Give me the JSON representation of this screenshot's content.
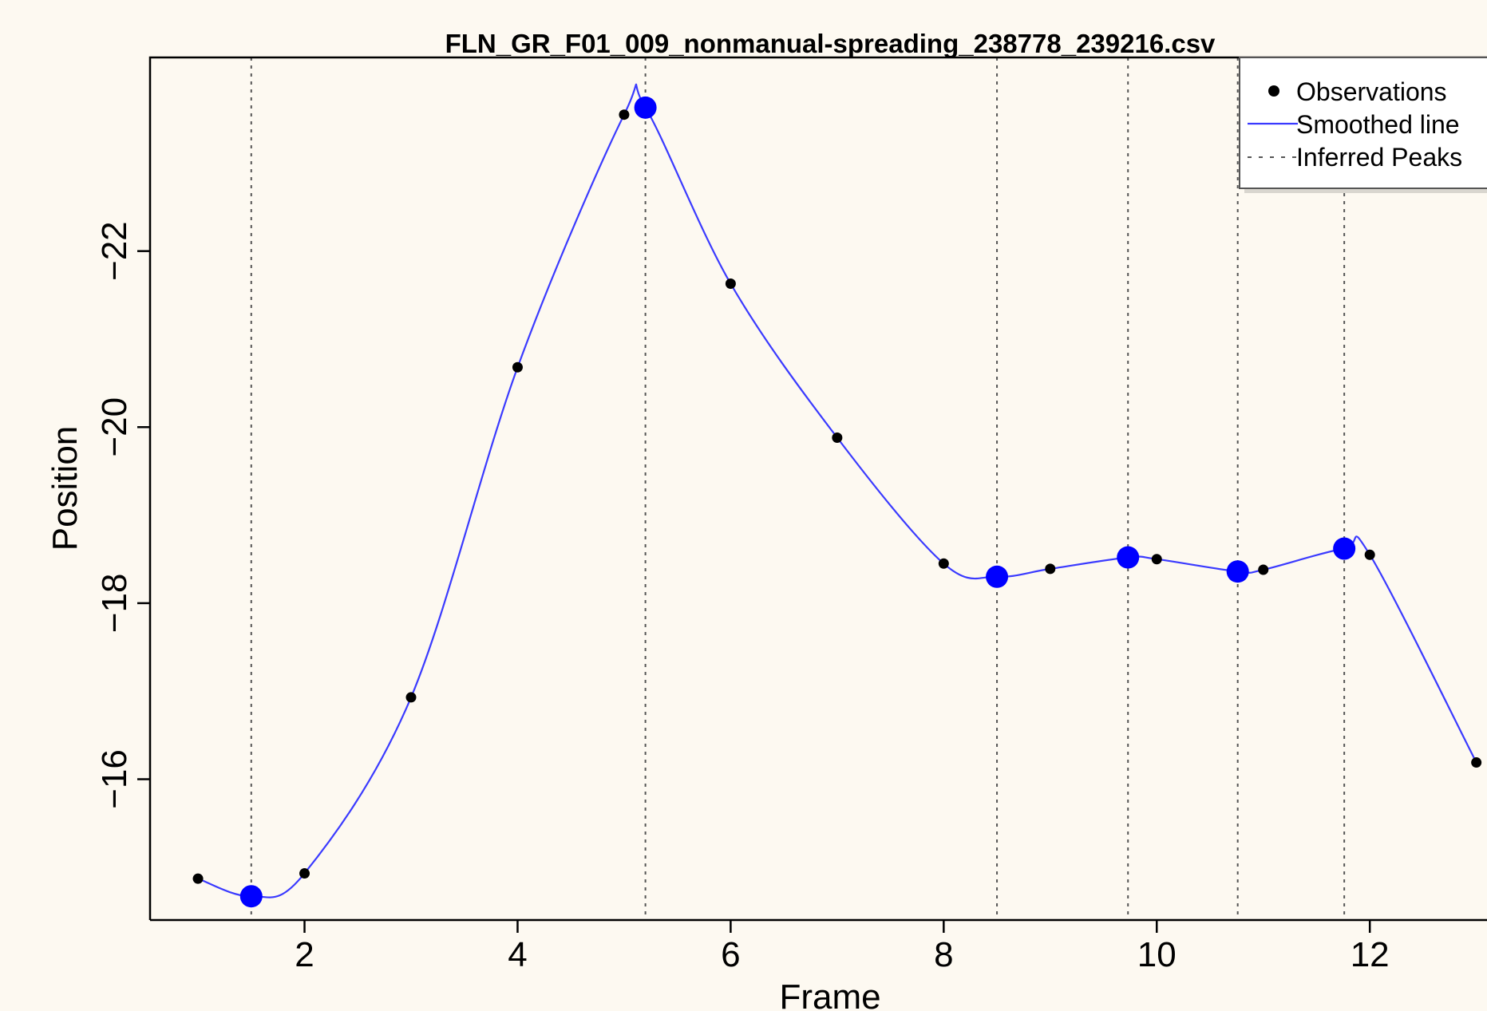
{
  "chart_data": {
    "type": "line",
    "title": "FLN_GR_F01_009_nonmanual-spreading_238778_239216.csv",
    "xlabel": "Frame",
    "ylabel": "Position",
    "xlim": [
      0.55,
      13.1
    ],
    "ylim": [
      -14.4,
      -24.2
    ],
    "x_ticks": [
      2,
      4,
      6,
      8,
      10,
      12
    ],
    "y_ticks": [
      -22,
      -20,
      -18,
      -16
    ],
    "observations": {
      "name": "Observations",
      "x": [
        1,
        2,
        3,
        4,
        5,
        6,
        7,
        8,
        9,
        10,
        11,
        12,
        13
      ],
      "y": [
        -14.87,
        -14.93,
        -16.93,
        -20.68,
        -23.55,
        -21.63,
        -19.88,
        -18.45,
        -18.39,
        -18.5,
        -18.38,
        -18.55,
        -16.19
      ]
    },
    "smoothed_line": {
      "name": "Smoothed line",
      "x": [
        1,
        1.5,
        2,
        3,
        4,
        5,
        5.2,
        6,
        7,
        8,
        8.5,
        9,
        9.73,
        10,
        10.76,
        11,
        11.76,
        12,
        13
      ],
      "y": [
        -14.87,
        -14.67,
        -14.93,
        -16.93,
        -20.68,
        -23.55,
        -23.63,
        -21.63,
        -19.88,
        -18.45,
        -18.3,
        -18.39,
        -18.52,
        -18.5,
        -18.36,
        -18.38,
        -18.62,
        -18.55,
        -16.19
      ]
    },
    "peaks": {
      "name": "Inferred Peaks",
      "x": [
        1.5,
        5.2,
        8.5,
        9.73,
        10.76,
        11.76
      ],
      "y": [
        -14.67,
        -23.63,
        -18.3,
        -18.52,
        -18.36,
        -18.62
      ]
    },
    "legend": {
      "position": "top-right",
      "entries": [
        "Observations",
        "Smoothed line",
        "Inferred Peaks"
      ]
    },
    "colors": {
      "background": "#fdf9f1",
      "line": "#3a3aff",
      "peak": "#0000ff",
      "observation": "#000000",
      "vline": "#555555"
    },
    "grid": false
  }
}
